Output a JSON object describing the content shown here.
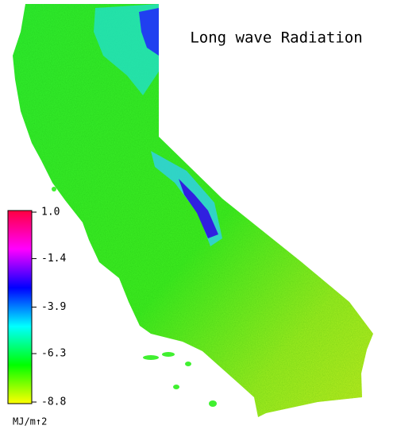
{
  "title": "Long wave Radiation",
  "colorbar": {
    "lim": [
      -8.8,
      1.0
    ],
    "ticks": [
      {
        "value": 1.0,
        "label": "1.0"
      },
      -1.4,
      -3.9,
      -6.3,
      -8.8
    ],
    "colors": [
      "#ffff00",
      "#00ff00",
      "#00ffff",
      "#0000ff",
      "#ff00ff",
      "#ff0040"
    ],
    "unit": "MJ/m↑2"
  }
}
